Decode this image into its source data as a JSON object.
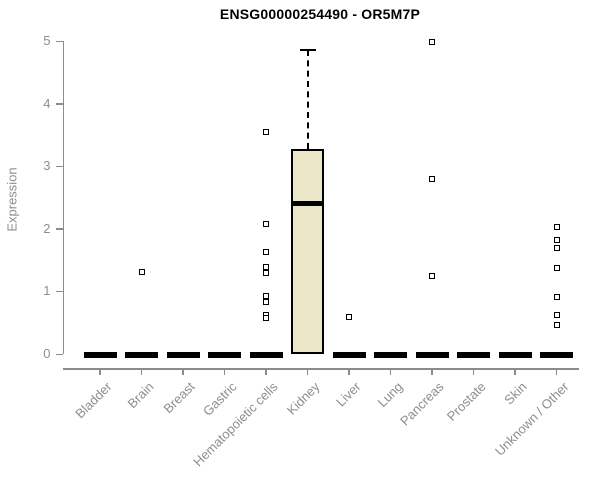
{
  "chart_data": {
    "type": "boxplot",
    "title": "ENSG00000254490 - OR5M7P",
    "ylabel": "Expression",
    "xlabel": "",
    "ylim": [
      0,
      5
    ],
    "yticks": [
      0,
      1,
      2,
      3,
      4,
      5
    ],
    "grid": false,
    "legend": "none",
    "categories": [
      "Bladder",
      "Brain",
      "Breast",
      "Gastric",
      "Hematopoietic cells",
      "Kidney",
      "Liver",
      "Lung",
      "Pancreas",
      "Prostate",
      "Skin",
      "Unknown / Other"
    ],
    "boxes": [
      {
        "category": "Bladder",
        "whisker_low": 0,
        "q1": 0,
        "median": 0,
        "q3": 0,
        "whisker_high": 0,
        "outliers": []
      },
      {
        "category": "Brain",
        "whisker_low": 0,
        "q1": 0,
        "median": 0,
        "q3": 0,
        "whisker_high": 0,
        "outliers": [
          1.31
        ]
      },
      {
        "category": "Breast",
        "whisker_low": 0,
        "q1": 0,
        "median": 0,
        "q3": 0,
        "whisker_high": 0,
        "outliers": []
      },
      {
        "category": "Gastric",
        "whisker_low": 0,
        "q1": 0,
        "median": 0,
        "q3": 0,
        "whisker_high": 0,
        "outliers": []
      },
      {
        "category": "Hematopoietic cells",
        "whisker_low": 0,
        "q1": 0,
        "median": 0,
        "q3": 0,
        "whisker_high": 0,
        "outliers": [
          3.55,
          2.08,
          1.63,
          1.39,
          1.3,
          0.93,
          0.83,
          0.63,
          0.58
        ]
      },
      {
        "category": "Kidney",
        "whisker_low": 0,
        "q1": 0,
        "median": 2.41,
        "q3": 3.27,
        "whisker_high": 4.86,
        "outliers": []
      },
      {
        "category": "Liver",
        "whisker_low": 0,
        "q1": 0,
        "median": 0,
        "q3": 0,
        "whisker_high": 0,
        "outliers": [
          0.59
        ]
      },
      {
        "category": "Lung",
        "whisker_low": 0,
        "q1": 0,
        "median": 0,
        "q3": 0,
        "whisker_high": 0,
        "outliers": []
      },
      {
        "category": "Pancreas",
        "whisker_low": 0,
        "q1": 0,
        "median": 0,
        "q3": 0,
        "whisker_high": 0,
        "outliers": [
          4.98,
          2.8,
          1.25
        ]
      },
      {
        "category": "Prostate",
        "whisker_low": 0,
        "q1": 0,
        "median": 0,
        "q3": 0,
        "whisker_high": 0,
        "outliers": []
      },
      {
        "category": "Skin",
        "whisker_low": 0,
        "q1": 0,
        "median": 0,
        "q3": 0,
        "whisker_high": 0,
        "outliers": []
      },
      {
        "category": "Unknown / Other",
        "whisker_low": 0,
        "q1": 0,
        "median": 0,
        "q3": 0,
        "whisker_high": 0,
        "outliers": [
          2.03,
          1.82,
          1.69,
          1.37,
          0.91,
          0.62,
          0.46
        ]
      }
    ],
    "colors": {
      "box_fill": "#ECE6C8",
      "box_border": "#000000",
      "median": "#000000",
      "whisker": "#000000",
      "outlier_border": "#000000",
      "outlier_fill": "#ffffff",
      "axis": "#8c8c8c",
      "tick_label": "#8e8e8e",
      "title": "#000000"
    }
  }
}
